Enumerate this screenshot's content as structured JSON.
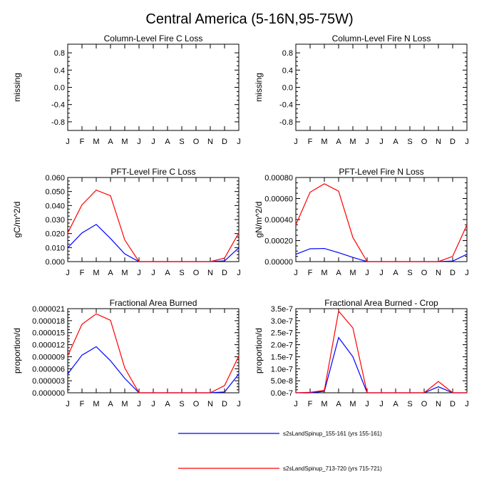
{
  "page_title": "Central America (5-16N,95-75W)",
  "month_labels": [
    "J",
    "F",
    "M",
    "A",
    "M",
    "J",
    "J",
    "A",
    "S",
    "O",
    "N",
    "D",
    "J"
  ],
  "legend": [
    {
      "label": "s2sLandSpinup_155-161 (yrs 155-161)",
      "color": "#0000ff"
    },
    {
      "label": "s2sLandSpinup_713-720 (yrs 715-721)",
      "color": "#ff0000"
    }
  ],
  "chart_data": [
    {
      "type": "line",
      "title": "Column-Level Fire C Loss",
      "ylabel": "missing",
      "ylim": [
        -1.0,
        1.0
      ],
      "yticks": [
        0.8,
        0.4,
        0.0,
        -0.4,
        -0.8
      ],
      "ytick_labels": [
        "0.8",
        "0.4",
        "0.0",
        "-0.4",
        "-0.8"
      ],
      "series": []
    },
    {
      "type": "line",
      "title": "Column-Level Fire N Loss",
      "ylabel": "missing",
      "ylim": [
        -1.0,
        1.0
      ],
      "yticks": [
        0.8,
        0.4,
        0.0,
        -0.4,
        -0.8
      ],
      "ytick_labels": [
        "0.8",
        "0.4",
        "0.0",
        "-0.4",
        "-0.8"
      ],
      "series": []
    },
    {
      "type": "line",
      "title": "PFT-Level Fire C Loss",
      "ylabel": "gC/m^2/d",
      "ylim": [
        0,
        0.06
      ],
      "yticks": [
        0,
        0.01,
        0.02,
        0.03,
        0.04,
        0.05,
        0.06
      ],
      "ytick_labels": [
        "0.000",
        "0.010",
        "0.020",
        "0.030",
        "0.040",
        "0.050",
        "0.060"
      ],
      "series": [
        {
          "name": "s2sLandSpinup_155-161 (yrs 155-161)",
          "color": "#0000ff",
          "values": [
            0.0099,
            0.0205,
            0.0265,
            0.0165,
            0.0055,
            0.0,
            0.0,
            0.0,
            0.0,
            0.0,
            0.0,
            0.0005,
            0.0099
          ]
        },
        {
          "name": "s2sLandSpinup_713-720 (yrs 715-721)",
          "color": "#ff0000",
          "values": [
            0.0205,
            0.0405,
            0.051,
            0.047,
            0.0155,
            0.0,
            0.0,
            0.0,
            0.0,
            0.0,
            0.0,
            0.0025,
            0.0205
          ]
        }
      ]
    },
    {
      "type": "line",
      "title": "PFT-Level Fire N Loss",
      "ylabel": "gN/m^2/d",
      "ylim": [
        0,
        0.0008
      ],
      "yticks": [
        0,
        0.0002,
        0.0004,
        0.0006,
        0.0008
      ],
      "ytick_labels": [
        "0.00000",
        "0.00020",
        "0.00040",
        "0.00060",
        "0.00080"
      ],
      "series": [
        {
          "name": "s2sLandSpinup_155-161 (yrs 155-161)",
          "color": "#0000ff",
          "values": [
            7e-05,
            0.000122,
            0.000125,
            8.5e-05,
            4e-05,
            0.0,
            0.0,
            0.0,
            0.0,
            0.0,
            0.0,
            5e-06,
            7e-05
          ]
        },
        {
          "name": "s2sLandSpinup_713-720 (yrs 715-721)",
          "color": "#ff0000",
          "values": [
            0.00035,
            0.00066,
            0.00074,
            0.00067,
            0.00023,
            0.0,
            0.0,
            0.0,
            0.0,
            0.0,
            0.0,
            5e-05,
            0.00035
          ]
        }
      ]
    },
    {
      "type": "line",
      "title": "Fractional Area Burned",
      "ylabel": "proportion/d",
      "ylim": [
        0,
        2.1e-05
      ],
      "yticks": [
        0,
        3e-06,
        6e-06,
        9e-06,
        1.2e-05,
        1.5e-05,
        1.8e-05,
        2.1e-05
      ],
      "ytick_labels": [
        "0.000000",
        "0.000003",
        "0.000006",
        "0.000009",
        "0.000012",
        "0.000015",
        "0.000018",
        "0.000021"
      ],
      "series": [
        {
          "name": "s2sLandSpinup_155-161 (yrs 155-161)",
          "color": "#0000ff",
          "values": [
            4.7e-06,
            9.4e-06,
            1.15e-05,
            8e-06,
            3.6e-06,
            0.0,
            0.0,
            0.0,
            0.0,
            0.0,
            0.0,
            2e-07,
            4.7e-06
          ]
        },
        {
          "name": "s2sLandSpinup_713-720 (yrs 715-721)",
          "color": "#ff0000",
          "values": [
            9.2e-06,
            1.71e-05,
            1.97e-05,
            1.81e-05,
            6.2e-06,
            0.0,
            0.0,
            0.0,
            0.0,
            0.0,
            0.0,
            1.8e-06,
            9.2e-06
          ]
        }
      ]
    },
    {
      "type": "line",
      "title": "Fractional Area Burned - Crop",
      "ylabel": "proportion/d",
      "ylim": [
        0,
        3.5e-07
      ],
      "yticks": [
        0,
        5e-08,
        1e-07,
        1.5e-07,
        2e-07,
        2.5e-07,
        3e-07,
        3.5e-07
      ],
      "ytick_labels": [
        "0.0e-7",
        "5.0e-8",
        "1.0e-7",
        "1.5e-7",
        "2.0e-7",
        "2.5e-7",
        "3.0e-7",
        "3.5e-7"
      ],
      "series": [
        {
          "name": "s2sLandSpinup_155-161 (yrs 155-161)",
          "color": "#0000ff",
          "values": [
            0.0,
            0.0,
            6e-09,
            2.3e-07,
            1.5e-07,
            0.0,
            0.0,
            0.0,
            0.0,
            0.0,
            2.5e-08,
            0.0,
            0.0
          ]
        },
        {
          "name": "s2sLandSpinup_713-720 (yrs 715-721)",
          "color": "#ff0000",
          "values": [
            0.0,
            2e-09,
            1e-08,
            3.4e-07,
            2.7e-07,
            0.0,
            0.0,
            0.0,
            0.0,
            0.0,
            4.7e-08,
            0.0,
            0.0
          ]
        }
      ]
    }
  ]
}
